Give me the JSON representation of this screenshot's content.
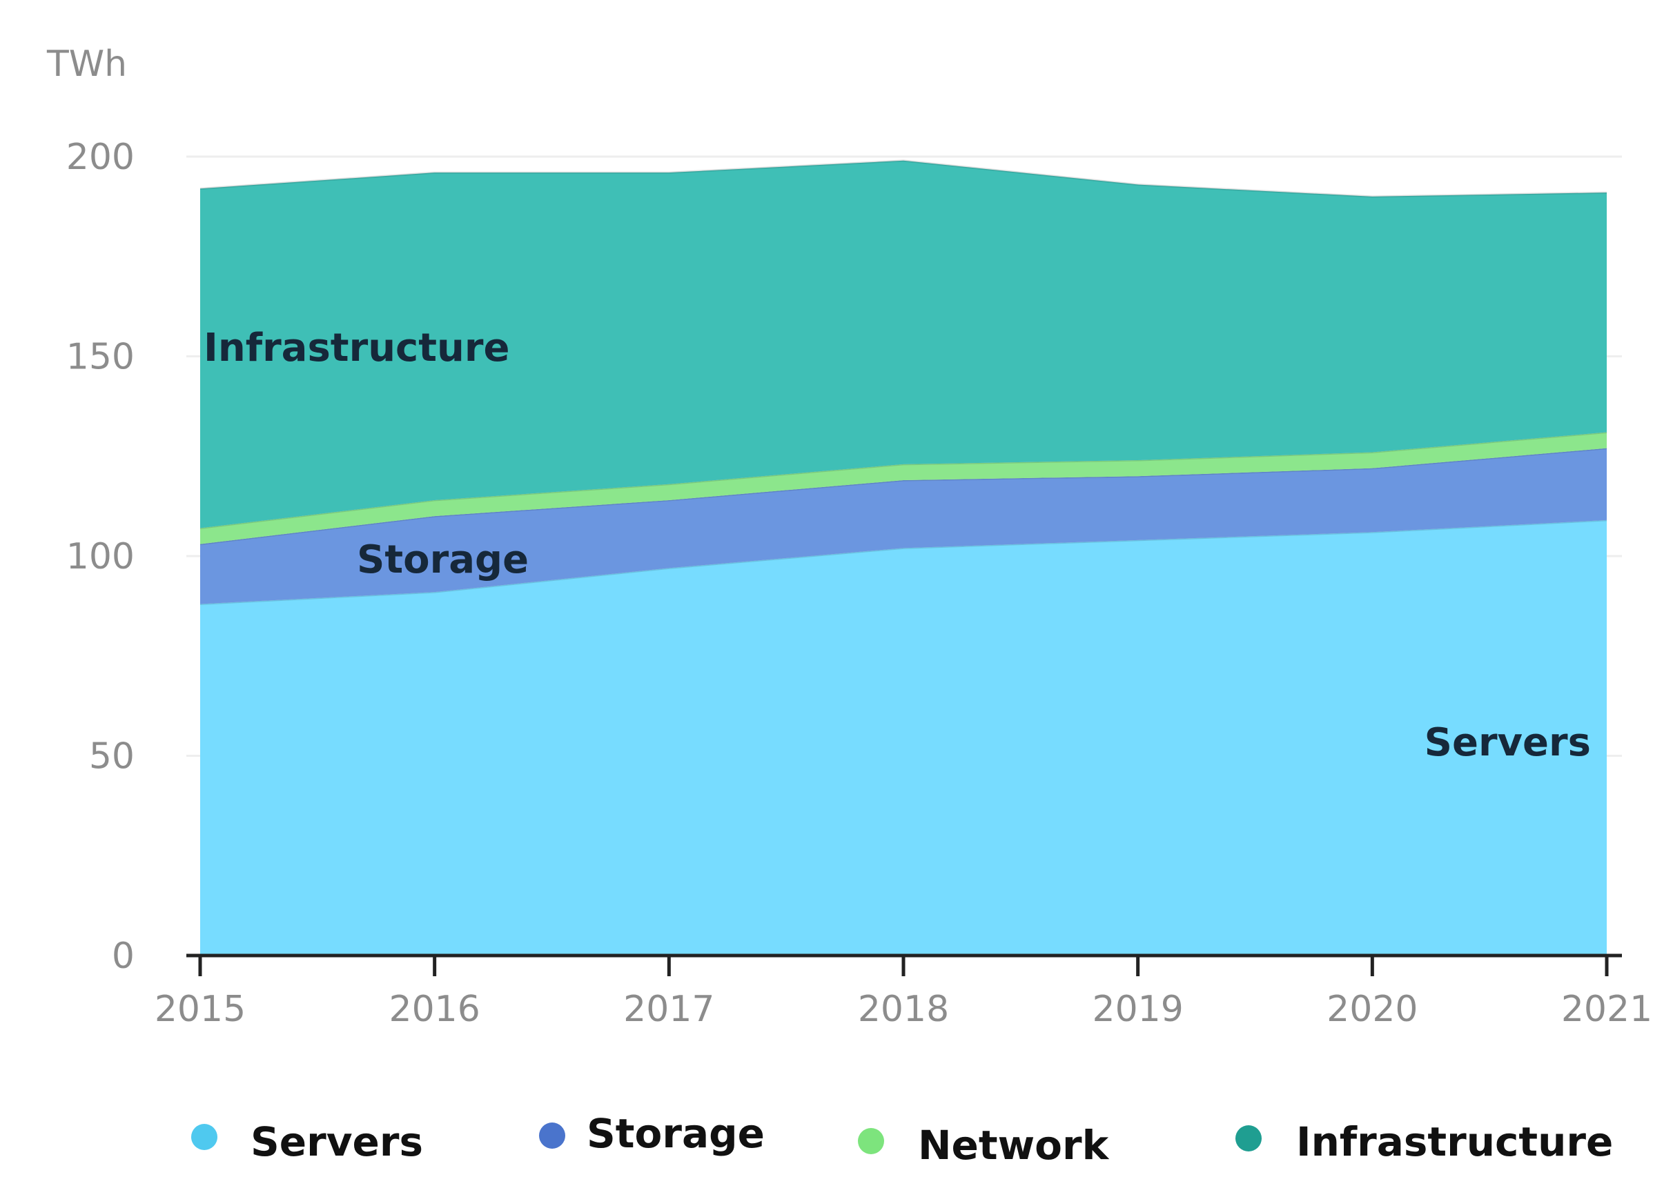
{
  "chart_data": {
    "type": "area",
    "stacked": true,
    "unit_label": "TWh",
    "x": [
      2015,
      2016,
      2017,
      2018,
      2019,
      2020,
      2021
    ],
    "x_tick_labels": [
      "2015",
      "2016",
      "2017",
      "2018",
      "2019",
      "2020",
      "2021"
    ],
    "y_ticks": [
      0,
      50,
      100,
      150,
      200
    ],
    "ylim": [
      0,
      200
    ],
    "grid": true,
    "series": [
      {
        "name": "Servers",
        "color": "#77dcff",
        "values": [
          88,
          91,
          97,
          102,
          104,
          106,
          109
        ]
      },
      {
        "name": "Storage",
        "color": "#6b96e0",
        "values": [
          15,
          19,
          17,
          17,
          16,
          16,
          18
        ]
      },
      {
        "name": "Network",
        "color": "#8ce68c",
        "values": [
          4,
          4,
          4,
          4,
          4,
          4,
          4
        ]
      },
      {
        "name": "Infrastructure",
        "color": "#3fbfb6",
        "values": [
          85,
          82,
          78,
          76,
          69,
          64,
          60
        ]
      }
    ],
    "annotations": [
      {
        "series": "Infrastructure",
        "text": "Infrastructure"
      },
      {
        "series": "Storage",
        "text": "Storage"
      },
      {
        "series": "Servers",
        "text": "Servers"
      }
    ],
    "legend": {
      "placement": "bottom",
      "items": [
        {
          "label": "Servers",
          "color": "#4fc9ef"
        },
        {
          "label": "Storage",
          "color": "#4a74cc"
        },
        {
          "label": "Network",
          "color": "#7de47d"
        },
        {
          "label": "Infrastructure",
          "color": "#1f9e91"
        }
      ]
    }
  }
}
